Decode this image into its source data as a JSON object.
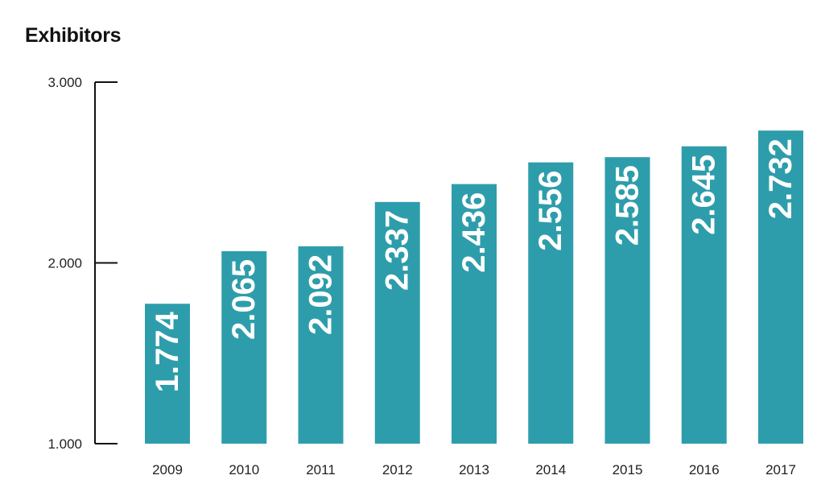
{
  "chart_data": {
    "type": "bar",
    "title": "Exhibitors",
    "xlabel": "",
    "ylabel": "",
    "categories": [
      "2009",
      "2010",
      "2011",
      "2012",
      "2013",
      "2014",
      "2015",
      "2016",
      "2017"
    ],
    "values": [
      1774,
      2065,
      2092,
      2337,
      2436,
      2556,
      2585,
      2645,
      2732
    ],
    "data_labels": [
      "1.774",
      "2.065",
      "2.092",
      "2.337",
      "2.436",
      "2.556",
      "2.585",
      "2.645",
      "2.732"
    ],
    "ylim": [
      1000,
      3000
    ],
    "yticks": [
      1000,
      2000,
      3000
    ],
    "ytick_labels": [
      "1.000",
      "2.000",
      "3.000"
    ],
    "grid": false,
    "legend": "none",
    "colors": {
      "bar": "#2e9dab",
      "axis": "#111111",
      "text": "#222222",
      "label": "#ffffff"
    }
  }
}
